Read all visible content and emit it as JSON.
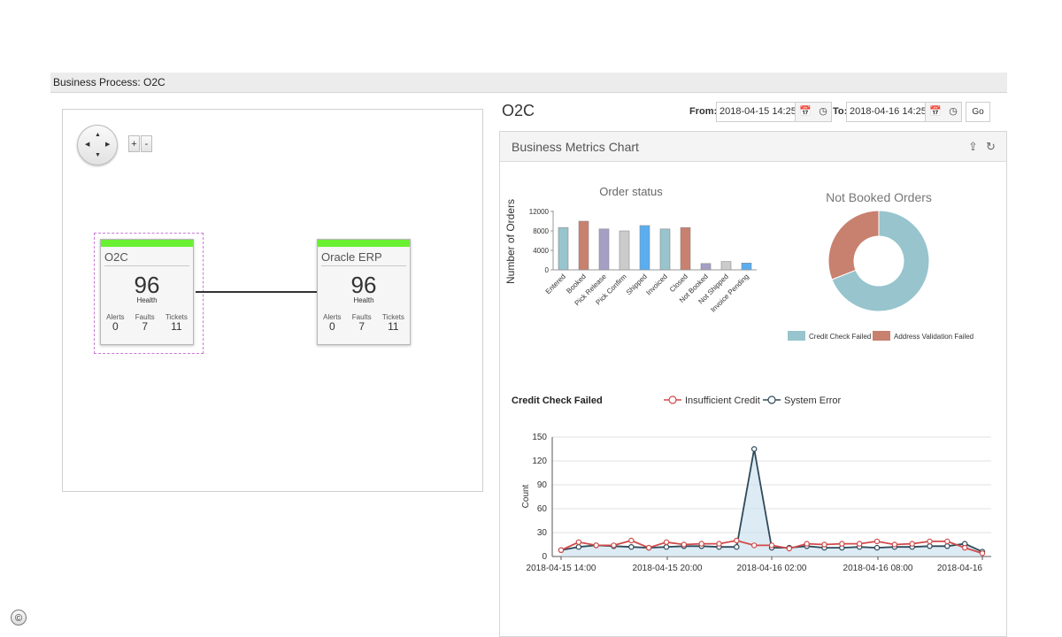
{
  "titlebar": {
    "text": "Business Process: O2C"
  },
  "diagram": {
    "zoom_in": "+",
    "zoom_out": "-",
    "nodes": [
      {
        "title": "O2C",
        "health": "96",
        "health_label": "Health",
        "alerts_label": "Alerts",
        "faults_label": "Faults",
        "tickets_label": "Tickets",
        "alerts": "0",
        "faults": "7",
        "tickets": "11",
        "status_color": "#6af032"
      },
      {
        "title": "Oracle ERP",
        "health": "96",
        "health_label": "Health",
        "alerts_label": "Alerts",
        "faults_label": "Faults",
        "tickets_label": "Tickets",
        "alerts": "0",
        "faults": "7",
        "tickets": "11",
        "status_color": "#6af032"
      }
    ]
  },
  "header": {
    "title": "O2C",
    "from_label": "From:",
    "from_value": "2018-04-15 14:25",
    "to_label": "To:",
    "to_value": "2018-04-16 14:25",
    "go_label": "Go"
  },
  "panel": {
    "title": "Business Metrics Chart"
  },
  "chart_data": [
    {
      "type": "bar",
      "title": "Order status",
      "ylabel": "Number of Orders",
      "ylim": [
        0,
        12000
      ],
      "yticks": [
        "12000",
        "8000",
        "4000",
        "0"
      ],
      "categories": [
        "Entered",
        "Booked",
        "Pick Release",
        "Pick Confirm",
        "Shipped",
        "Invoiced",
        "Closed",
        "Not Booked",
        "Not Shipped",
        "Invoice Pending"
      ],
      "values": [
        8700,
        10000,
        8400,
        8000,
        9100,
        8400,
        8700,
        1300,
        1700,
        1400
      ],
      "colors": [
        "#97c4cd",
        "#c8806f",
        "#a59fc6",
        "#cbcbcb",
        "#5aaef0",
        "#97c4cd",
        "#c8806f",
        "#a59fc6",
        "#cbcbcb",
        "#5aaef0"
      ]
    },
    {
      "type": "pie",
      "title": "Not Booked Orders",
      "labels": [
        "Credit Check Failed",
        "Address Validation Failed"
      ],
      "values": [
        69,
        31
      ],
      "colors": [
        "#97c4cd",
        "#c8806f"
      ]
    },
    {
      "type": "line",
      "title": "Credit Check Failed",
      "ylabel": "Count",
      "ylim": [
        0,
        150
      ],
      "yticks": [
        "150",
        "120",
        "90",
        "60",
        "30",
        "0"
      ],
      "xticks": [
        "2018-04-15 14:00",
        "2018-04-15 20:00",
        "2018-04-16 02:00",
        "2018-04-16 08:00",
        "2018-04-16"
      ],
      "series": [
        {
          "name": "Insufficient Credit",
          "color": "#d14a4a",
          "values": [
            8,
            18,
            14,
            14,
            20,
            11,
            18,
            15,
            16,
            16,
            20,
            14,
            14,
            10,
            16,
            15,
            16,
            16,
            19,
            15,
            16,
            19,
            19,
            11,
            4
          ]
        },
        {
          "name": "System Error",
          "color": "#2f4a5a",
          "values": [
            8,
            12,
            14,
            13,
            12,
            11,
            12,
            13,
            13,
            12,
            12,
            135,
            11,
            11,
            13,
            11,
            11,
            12,
            11,
            12,
            12,
            13,
            13,
            16,
            6
          ]
        }
      ]
    }
  ]
}
